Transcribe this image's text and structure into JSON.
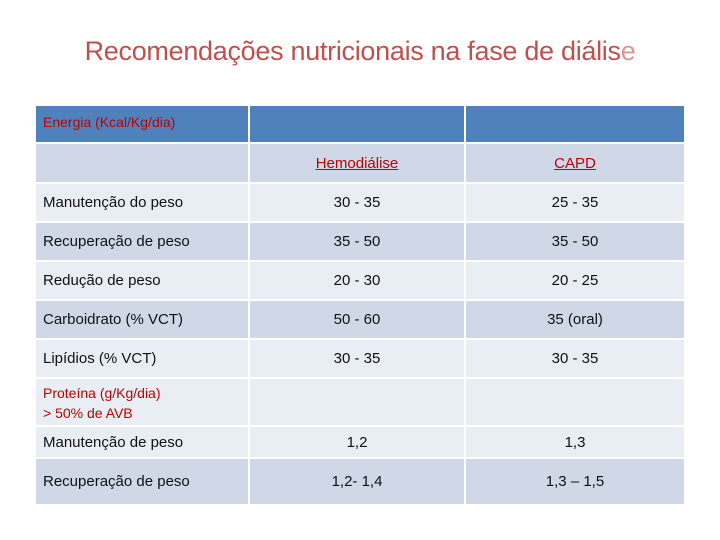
{
  "title_main": "Recomendações nutricionais na fase de diális",
  "title_last": "e",
  "table": {
    "header_label": "Energia (Kcal/Kg/dia)",
    "col_hemo": "Hemodiálise",
    "col_capd": "CAPD",
    "rows": [
      {
        "label": "Manutenção do peso",
        "hemo": "30 - 35",
        "capd": "25 - 35"
      },
      {
        "label": "Recuperação de peso",
        "hemo": "35 - 50",
        "capd": "35 - 50"
      },
      {
        "label": "Redução de peso",
        "hemo": "20 - 30",
        "capd": "20 - 25"
      },
      {
        "label": "Carboidrato (% VCT)",
        "hemo": "50 - 60",
        "capd": "35 (oral)"
      },
      {
        "label": "Lipídios (% VCT)",
        "hemo": "30 - 35",
        "capd": "30 - 35"
      }
    ],
    "protein_label_1": "Proteína (g/Kg/dia)",
    "protein_label_2": "> 50% de AVB",
    "protein_rows": [
      {
        "label": "Manutenção de peso",
        "hemo": "1,2",
        "capd": "1,3"
      },
      {
        "label": "Recuperação de peso",
        "hemo": "1,2- 1,4",
        "capd": "1,3 – 1,5"
      }
    ]
  }
}
